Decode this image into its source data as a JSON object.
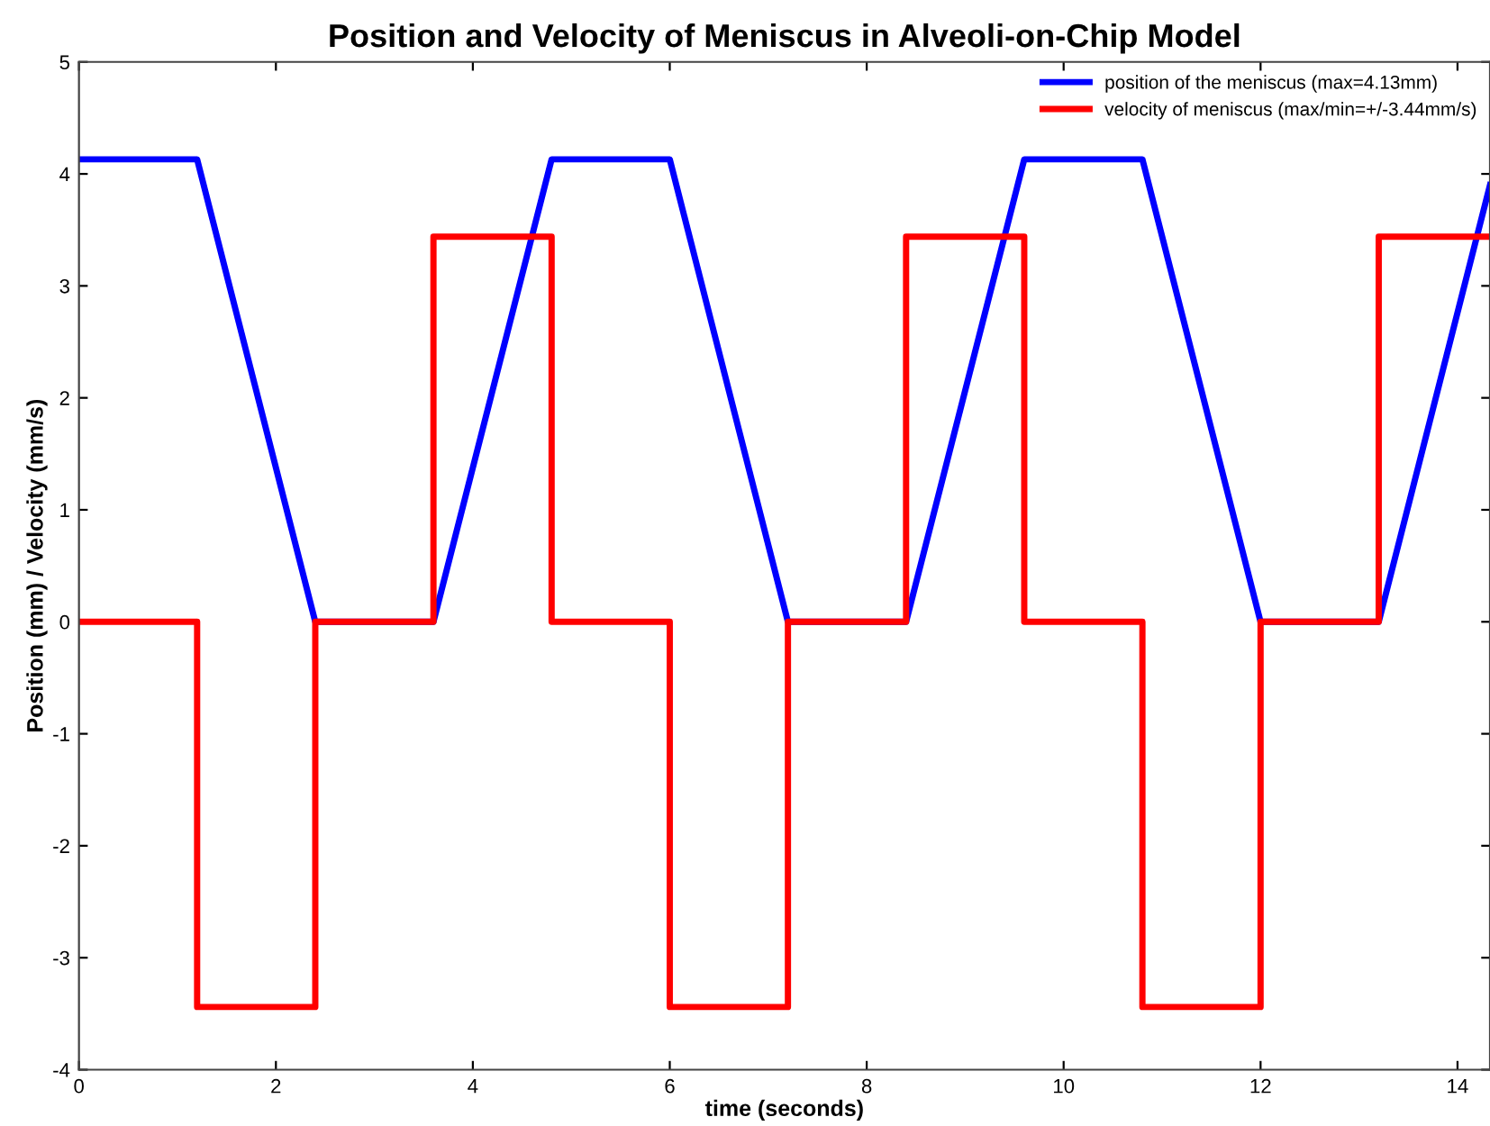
{
  "chart_data": {
    "type": "line",
    "title": "Position and Velocity of Meniscus in Alveoli-on-Chip Model",
    "xlabel": "time (seconds)",
    "ylabel": "Position (mm) / Velocity (mm/s)",
    "series": [
      {
        "name": "position of the meniscus (max=4.13mm)",
        "color": "#0000ff",
        "x": [
          0,
          1.2,
          2.4,
          3.6,
          4.8,
          6.0,
          7.2,
          8.4,
          9.6,
          10.8,
          12.0,
          13.2,
          14.33
        ],
        "values": [
          4.13,
          4.13,
          0,
          0,
          4.13,
          4.13,
          0,
          0,
          4.13,
          4.13,
          0,
          0,
          3.9
        ]
      },
      {
        "name": "velocity of meniscus (max/min=+/-3.44mm/s)",
        "color": "#ff0000",
        "type": "step",
        "x": [
          0,
          1.2,
          2.4,
          3.6,
          4.8,
          6.0,
          7.2,
          8.4,
          9.6,
          10.8,
          12.0,
          13.2,
          14.33
        ],
        "values": [
          0,
          -3.44,
          0,
          3.44,
          0,
          -3.44,
          0,
          3.44,
          0,
          -3.44,
          0,
          3.44,
          3.44
        ]
      }
    ],
    "xlim": [
      0,
      14.33
    ],
    "xticks": [
      0,
      2,
      4,
      6,
      8,
      10,
      12,
      14
    ],
    "ylim": [
      -4,
      5
    ],
    "yticks": [
      -4,
      -3,
      -2,
      -1,
      0,
      1,
      2,
      3,
      4,
      5
    ],
    "grid": false,
    "legend": "top right"
  }
}
